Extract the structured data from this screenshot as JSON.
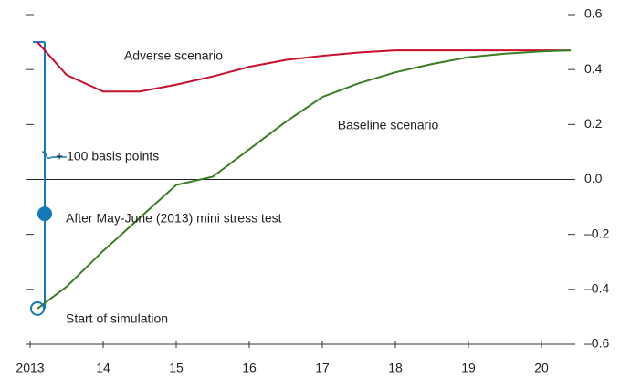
{
  "chart_data": {
    "type": "line",
    "x": [
      2013.1,
      2013.5,
      2014,
      2014.5,
      2015,
      2015.5,
      2016,
      2016.5,
      2017,
      2017.5,
      2018,
      2018.5,
      2019,
      2019.5,
      2020,
      2020.4
    ],
    "series": [
      {
        "name": "Adverse scenario",
        "color": "#c8102e",
        "values": [
          0.5,
          0.38,
          0.32,
          0.32,
          0.345,
          0.375,
          0.41,
          0.435,
          0.45,
          0.462,
          0.47,
          0.47,
          0.47,
          0.47,
          0.47,
          0.47
        ]
      },
      {
        "name": "Baseline scenario",
        "color": "#3a7d22",
        "values": [
          -0.47,
          -0.39,
          -0.26,
          -0.14,
          -0.02,
          0.01,
          0.11,
          0.21,
          0.3,
          0.35,
          0.39,
          0.42,
          0.445,
          0.458,
          0.466,
          0.47
        ]
      }
    ],
    "points": [
      {
        "name": "After May-June (2013) mini stress test",
        "x": 2013.2,
        "value": -0.125
      },
      {
        "name": "Start of simulation",
        "x": 2013.1,
        "value": -0.47
      }
    ],
    "annotation": "+ 100 basis points",
    "annotation_color": "#1479b8",
    "xlim": [
      2013,
      2020.4
    ],
    "xticks": [
      2013,
      {
        "value": 2014,
        "label": "14"
      },
      {
        "value": 2015,
        "label": "15"
      },
      {
        "value": 2016,
        "label": "16"
      },
      {
        "value": 2017,
        "label": "17"
      },
      {
        "value": 2018,
        "label": "18"
      },
      {
        "value": 2019,
        "label": "19"
      },
      {
        "value": 2020,
        "label": "20"
      }
    ],
    "ylim": [
      -0.6,
      0.6
    ],
    "yticks": [
      0.6,
      0.4,
      0.2,
      {
        "value": 0,
        "label": "0.0"
      },
      {
        "value": -0.2,
        "label": "–0.2"
      },
      {
        "value": -0.4,
        "label": "–0.4"
      },
      {
        "value": -0.6,
        "label": "–0.6"
      }
    ]
  }
}
